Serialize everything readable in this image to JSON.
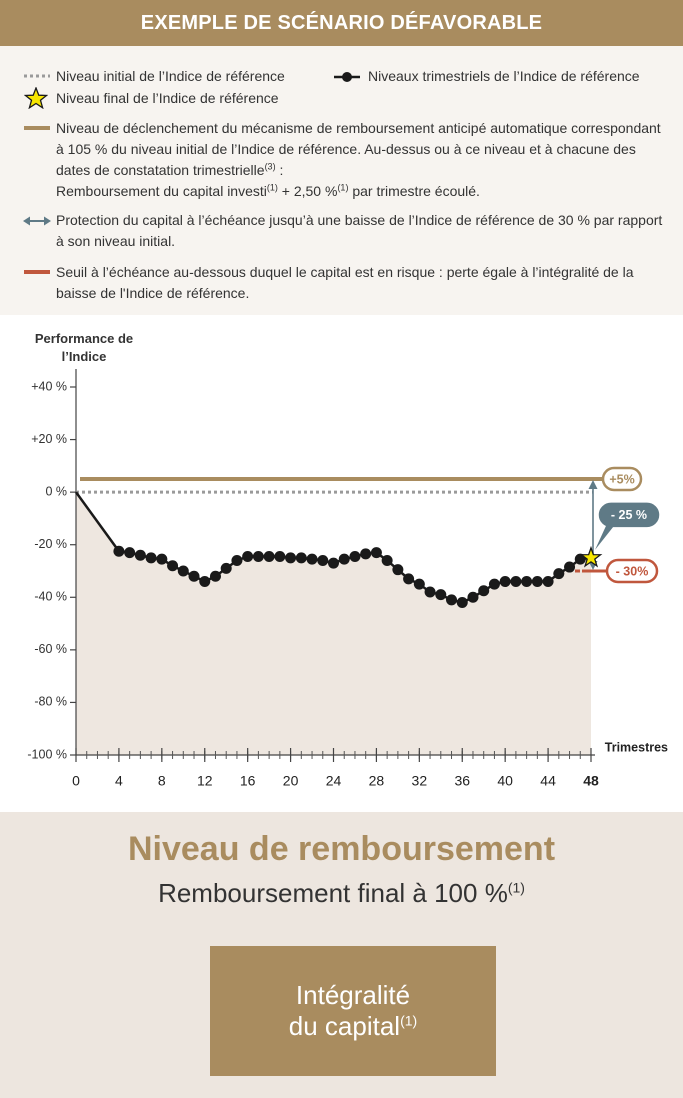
{
  "header": {
    "title": "EXEMPLE DE SCÉNARIO DÉFAVORABLE"
  },
  "legend": {
    "initial_level": "Niveau initial de l’Indice de référence",
    "final_level": "Niveau final de l’Indice de référence",
    "trigger": [
      "Niveau de déclenchement du mécanisme de remboursement anticipé automatique correspondant à 105 % du niveau initial de l’Indice de référence. Au-dessus ou à ce niveau et à chacune des dates de constatation trimestrielle",
      "(3)",
      " :",
      "Remboursement du capital investi",
      "(1)",
      " + 2,50 %",
      "(1)",
      " par trimestre écoulé."
    ],
    "protection": "Protection du capital à l’échéance jusqu’à une baisse de l’Indice de référence de 30 % par rapport à son niveau initial.",
    "risk_threshold": "Seuil à l’échéance au-dessous duquel le capital est en risque : perte égale à l’intégralité de la baisse de l'Indice de référence."
  },
  "chart_data": {
    "type": "line",
    "y_label": "Performance de l’Indice",
    "x_label": "Trimestres",
    "x": [
      0,
      4,
      5,
      6,
      7,
      8,
      9,
      10,
      11,
      12,
      13,
      14,
      15,
      16,
      17,
      18,
      19,
      20,
      21,
      22,
      23,
      24,
      25,
      26,
      27,
      28,
      29,
      30,
      31,
      32,
      33,
      34,
      35,
      36,
      37,
      38,
      39,
      40,
      41,
      42,
      43,
      44,
      45,
      46,
      47,
      48
    ],
    "series": [
      {
        "name": "Niveaux trimestriels de l’Indice de référence",
        "color": "#1a1a1a",
        "values": [
          0,
          -22.5,
          -23,
          -24,
          -25,
          -25.5,
          -28,
          -30,
          -32,
          -34,
          -32,
          -29,
          -26,
          -24.5,
          -24.5,
          -24.5,
          -24.5,
          -25,
          -25,
          -25.5,
          -26,
          -27,
          -25.5,
          -24.5,
          -23.5,
          -23,
          -26,
          -29.5,
          -33,
          -35,
          -38,
          -39,
          -41,
          -42,
          -40,
          -37.5,
          -35,
          -34,
          -34,
          -34,
          -34,
          -34,
          -31,
          -28.5,
          -25.5,
          -25
        ]
      }
    ],
    "final_label": {
      "text": "- 25 %",
      "value": -25,
      "color": "#5f7a86"
    },
    "initial_level": {
      "value": 0,
      "color": "#9a9a9a"
    },
    "trigger_level": {
      "value": 5,
      "label": "+5%",
      "color": "#a98c5f"
    },
    "risk_threshold": {
      "value": -30,
      "label": "- 30%",
      "color": "#c0573d"
    },
    "protection_color": "#5f7a86",
    "area_color": "#eee7e0",
    "xlim": [
      0,
      48
    ],
    "xticks": [
      0,
      4,
      8,
      12,
      16,
      20,
      24,
      28,
      32,
      36,
      40,
      44,
      48
    ],
    "ylim": [
      -100,
      40
    ],
    "yticks": [
      {
        "value": 40,
        "label": "+40 %"
      },
      {
        "value": 20,
        "label": "+20 %"
      },
      {
        "value": 0,
        "label": "0 %"
      },
      {
        "value": -20,
        "label": "-20 %"
      },
      {
        "value": -40,
        "label": "-40 %"
      },
      {
        "value": -60,
        "label": "-60 %"
      },
      {
        "value": -80,
        "label": "-80 %"
      },
      {
        "value": -100,
        "label": "-100 %"
      }
    ]
  },
  "repayment": {
    "title": "Niveau de remboursement",
    "text": "Remboursement final à 100 %",
    "text_note": "(1)",
    "box_line1": "Intégralité",
    "box_line2": "du capital",
    "box_note": "(1)"
  }
}
